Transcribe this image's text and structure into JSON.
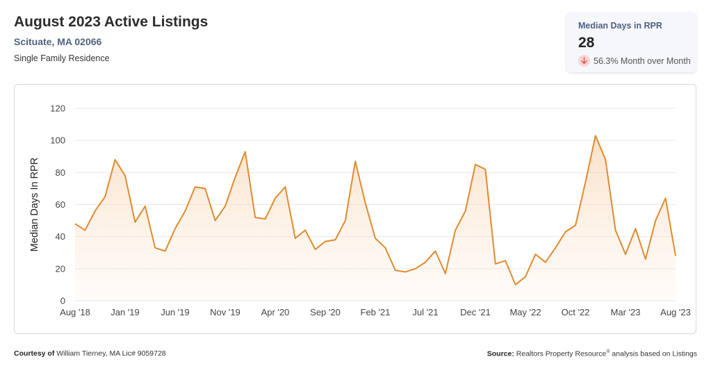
{
  "header": {
    "title": "August 2023 Active Listings",
    "location": "Scituate, MA 02066",
    "property_type": "Single Family Residence"
  },
  "stat": {
    "label": "Median Days in RPR",
    "value": "28",
    "change": "56.3% Month over Month",
    "direction_icon": "arrow-down-icon"
  },
  "colors": {
    "line": "#e08a2e",
    "fill": "#fbe3cc",
    "grid": "#e6e6e6",
    "down_badge": "#f6d5d2",
    "down_arrow": "#d9534f"
  },
  "footer": {
    "courtesy_label": "Courtesy of",
    "courtesy_text": "William Tierney, MA Lic# 9059728",
    "source_label": "Source:",
    "source_text_1": "Realtors Property Resource",
    "source_mark": "®",
    "source_text_2": "analysis based on Listings"
  },
  "chart_data": {
    "type": "area",
    "ylabel": "Median Days In RPR",
    "ylim": [
      0,
      120
    ],
    "yticks": [
      0,
      20,
      40,
      60,
      80,
      100,
      120
    ],
    "grid": true,
    "legend": "none",
    "xtick_labels": [
      {
        "index": 0,
        "label": "Aug '18"
      },
      {
        "index": 5,
        "label": "Jan '19"
      },
      {
        "index": 10,
        "label": "Jun '19"
      },
      {
        "index": 15,
        "label": "Nov '19"
      },
      {
        "index": 20,
        "label": "Apr '20"
      },
      {
        "index": 25,
        "label": "Sep '20"
      },
      {
        "index": 30,
        "label": "Feb '21"
      },
      {
        "index": 35,
        "label": "Jul '21"
      },
      {
        "index": 40,
        "label": "Dec '21"
      },
      {
        "index": 45,
        "label": "May '22"
      },
      {
        "index": 50,
        "label": "Oct '22"
      },
      {
        "index": 55,
        "label": "Mar '23"
      },
      {
        "index": 60,
        "label": "Aug '23"
      }
    ],
    "months": [
      "Aug '18",
      "Sep '18",
      "Oct '18",
      "Nov '18",
      "Dec '18",
      "Jan '19",
      "Feb '19",
      "Mar '19",
      "Apr '19",
      "May '19",
      "Jun '19",
      "Jul '19",
      "Aug '19",
      "Sep '19",
      "Oct '19",
      "Nov '19",
      "Dec '19",
      "Jan '20",
      "Feb '20",
      "Mar '20",
      "Apr '20",
      "May '20",
      "Jun '20",
      "Jul '20",
      "Aug '20",
      "Sep '20",
      "Oct '20",
      "Nov '20",
      "Dec '20",
      "Jan '21",
      "Feb '21",
      "Mar '21",
      "Apr '21",
      "May '21",
      "Jun '21",
      "Jul '21",
      "Aug '21",
      "Sep '21",
      "Oct '21",
      "Nov '21",
      "Dec '21",
      "Jan '22",
      "Feb '22",
      "Mar '22",
      "Apr '22",
      "May '22",
      "Jun '22",
      "Jul '22",
      "Aug '22",
      "Sep '22",
      "Oct '22",
      "Nov '22",
      "Dec '22",
      "Jan '23",
      "Feb '23",
      "Mar '23",
      "Apr '23",
      "May '23",
      "Jun '23",
      "Jul '23",
      "Aug '23"
    ],
    "values": [
      48,
      44,
      56,
      65,
      88,
      78,
      49,
      59,
      33,
      31,
      45,
      56,
      71,
      70,
      50,
      59,
      77,
      93,
      52,
      51,
      64,
      71,
      39,
      44,
      32,
      37,
      38,
      50,
      87,
      61,
      39,
      33,
      19,
      18,
      20,
      24,
      31,
      17,
      44,
      56,
      85,
      82,
      23,
      25,
      10,
      15,
      29,
      24,
      33,
      43,
      47,
      74,
      103,
      88,
      44,
      29,
      45,
      26,
      50,
      64,
      28
    ]
  }
}
